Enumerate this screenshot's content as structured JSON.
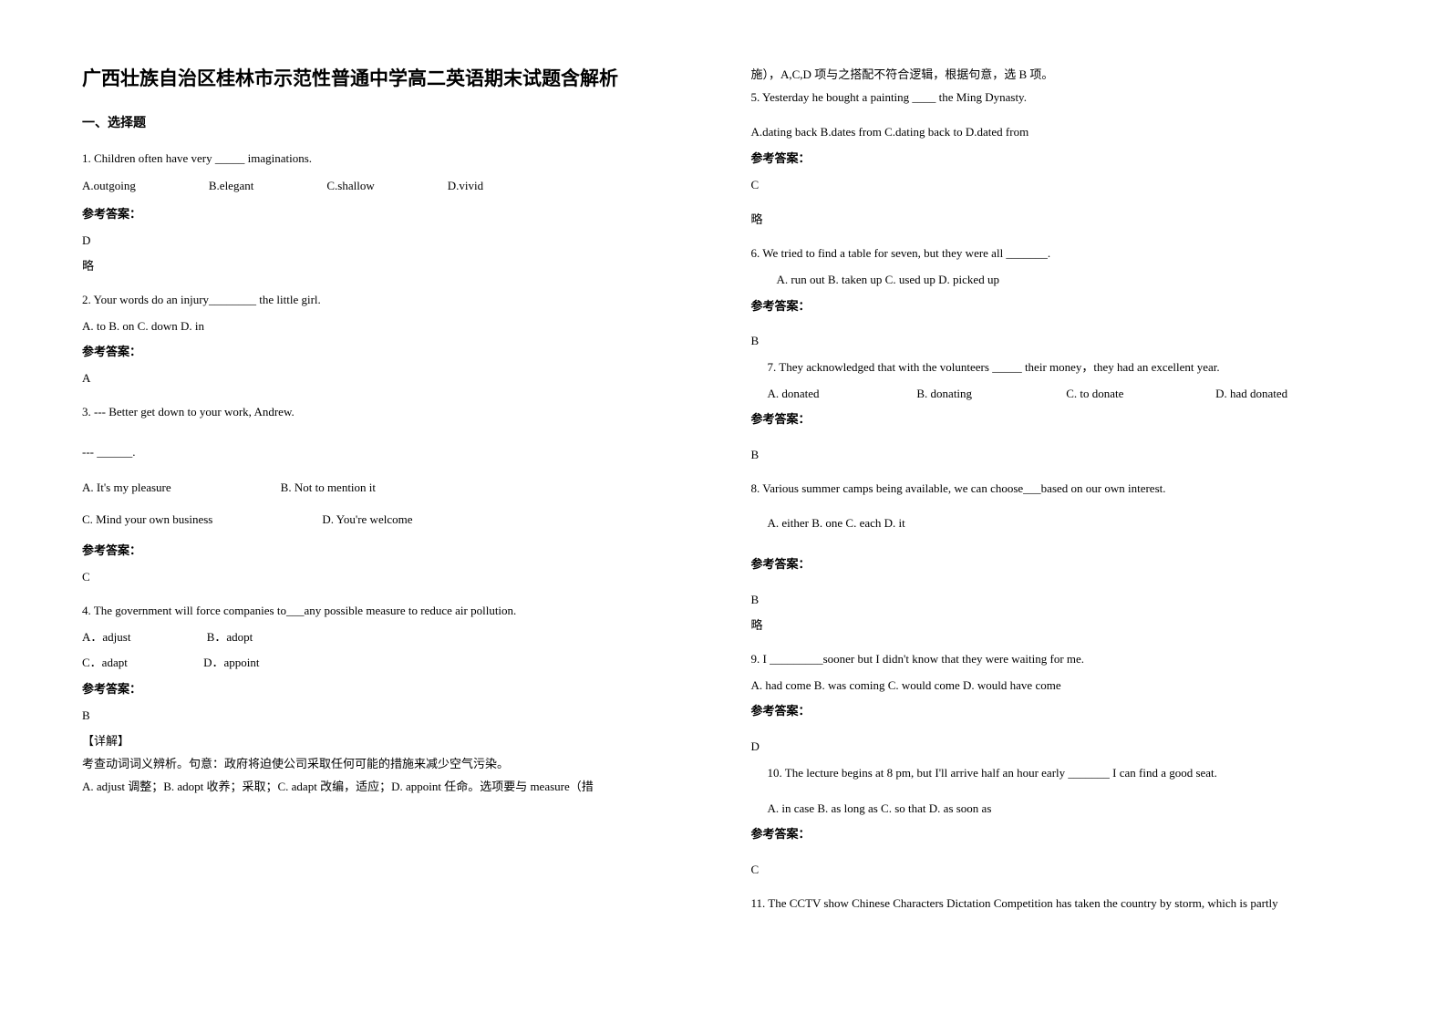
{
  "title": "广西壮族自治区桂林市示范性普通中学高二英语期末试题含解析",
  "section1": "一、选择题",
  "q1": {
    "text": "1. Children often have very _____ imaginations.",
    "a": "A.outgoing",
    "b": "B.elegant",
    "c": "C.shallow",
    "d": "D.vivid",
    "ansLabel": "参考答案：",
    "ans": "D",
    "note": "略"
  },
  "q2": {
    "text": "2. Your words do an injury________ the little girl.",
    "opts": "A. to    B. on   C. down   D. in",
    "ansLabel": "参考答案：",
    "ans": "A"
  },
  "q3": {
    "text": "3. --- Better get down to your work, Andrew.",
    "text2": "--- ______.",
    "a": "A. It's my pleasure",
    "b": "B. Not to mention it",
    "c": "C. Mind your own business",
    "d": "D. You're welcome",
    "ansLabel": "参考答案：",
    "ans": "C"
  },
  "q4": {
    "text": "4. The government will force companies to___any possible measure to reduce air pollution.",
    "a": "A．adjust",
    "b": "B．adopt",
    "c": "C．adapt",
    "d": "D．appoint",
    "ansLabel": "参考答案：",
    "ans": "B",
    "explainLabel": "【详解】",
    "explain1": "考查动词词义辨析。句意：政府将迫使公司采取任何可能的措施来减少空气污染。",
    "explain2": "A. adjust 调整；B. adopt 收养；采取；C. adapt  改编，适应；D. appoint 任命。选项要与 measure（措"
  },
  "col2top": "施），A,C,D 项与之搭配不符合逻辑，根据句意，选 B 项。",
  "q5": {
    "text": "5. Yesterday he bought a painting ____ the Ming Dynasty.",
    "opts": "A.dating back   B.dates from   C.dating back to   D.dated from",
    "ansLabel": "参考答案：",
    "ans": "C",
    "note": "略"
  },
  "q6": {
    "text": "6. We tried to find a table for seven, but they were all _______.",
    "opts": "A. run out     B. taken up     C. used up     D. picked up",
    "ansLabel": "参考答案：",
    "ans": "B"
  },
  "q7": {
    "text": "7. They acknowledged that with the volunteers _____ their money，they had an excellent year.",
    "a": "A. donated",
    "b": "B. donating",
    "c": "C. to donate",
    "d": "D. had donated",
    "ansLabel": "参考答案：",
    "ans": "B"
  },
  "q8": {
    "text": "8. Various summer camps being available, we can choose___based on our own interest.",
    "opts": "A. either   B. one   C. each   D. it",
    "ansLabel": "参考答案：",
    "ans": "B",
    "note": "略"
  },
  "q9": {
    "text": "9. I _________sooner but I didn't know that they were waiting for me.",
    "opts": " A. had come       B. was coming     C. would come     D. would have come",
    "ansLabel": "参考答案：",
    "ans": "D"
  },
  "q10": {
    "text": "10.  The lecture begins at 8 pm, but I'll arrive half an hour early _______ I can find a good seat.",
    "opts": "A. in case    B. as long as   C. so that     D. as soon as",
    "ansLabel": "参考答案：",
    "ans": "C"
  },
  "q11": {
    "text": "11. The CCTV show Chinese Characters Dictation Competition has taken the country by storm, which is partly"
  }
}
